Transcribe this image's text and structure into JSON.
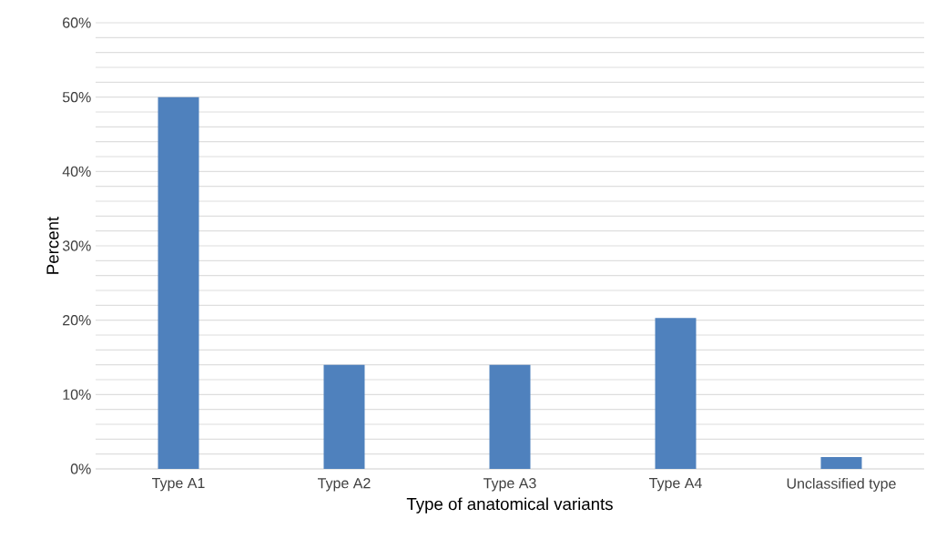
{
  "chart_data": {
    "type": "bar",
    "xlabel": "Type of anatomical variants",
    "ylabel": "Percent",
    "categories": [
      "Type A1",
      "Type A2",
      "Type A3",
      "Type A4",
      "Unclassified type"
    ],
    "values": [
      50,
      14,
      14,
      20.3,
      1.6
    ],
    "color": "#4f81bd",
    "ylim": [
      0,
      60
    ],
    "yticks": [
      {
        "value": 0,
        "label": "0%"
      },
      {
        "value": 2,
        "label": null
      },
      {
        "value": 4,
        "label": null
      },
      {
        "value": 6,
        "label": null
      },
      {
        "value": 8,
        "label": null
      },
      {
        "value": 10,
        "label": "10%"
      },
      {
        "value": 12,
        "label": null
      },
      {
        "value": 14,
        "label": null
      },
      {
        "value": 16,
        "label": null
      },
      {
        "value": 18,
        "label": null
      },
      {
        "value": 20,
        "label": "20%"
      },
      {
        "value": 22,
        "label": null
      },
      {
        "value": 24,
        "label": null
      },
      {
        "value": 26,
        "label": null
      },
      {
        "value": 28,
        "label": null
      },
      {
        "value": 30,
        "label": "30%"
      },
      {
        "value": 32,
        "label": null
      },
      {
        "value": 34,
        "label": null
      },
      {
        "value": 36,
        "label": null
      },
      {
        "value": 38,
        "label": null
      },
      {
        "value": 40,
        "label": "40%"
      },
      {
        "value": 42,
        "label": null
      },
      {
        "value": 44,
        "label": null
      },
      {
        "value": 46,
        "label": null
      },
      {
        "value": 48,
        "label": null
      },
      {
        "value": 50,
        "label": "50%"
      },
      {
        "value": 52,
        "label": null
      },
      {
        "value": 54,
        "label": null
      },
      {
        "value": 56,
        "label": null
      },
      {
        "value": 58,
        "label": null
      },
      {
        "value": 60,
        "label": "60%"
      }
    ],
    "grid": "y"
  }
}
